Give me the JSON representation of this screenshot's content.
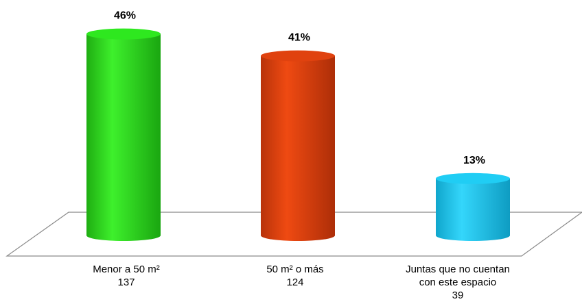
{
  "chart_data": {
    "type": "bar",
    "style": "3d-cylinder",
    "categories": [
      [
        "Menor a 50 m²",
        "137"
      ],
      [
        "50 m² o más",
        "124"
      ],
      [
        "Juntas que no cuentan",
        "con este espacio",
        "39"
      ]
    ],
    "counts": [
      137,
      124,
      39
    ],
    "values": [
      46,
      41,
      13
    ],
    "data_labels": [
      "46%",
      "41%",
      "13%"
    ],
    "colors": [
      "#22d41a",
      "#d9400e",
      "#18c4ee"
    ],
    "title": "",
    "xlabel": "",
    "ylabel": "",
    "legend": "none",
    "grid": false
  }
}
